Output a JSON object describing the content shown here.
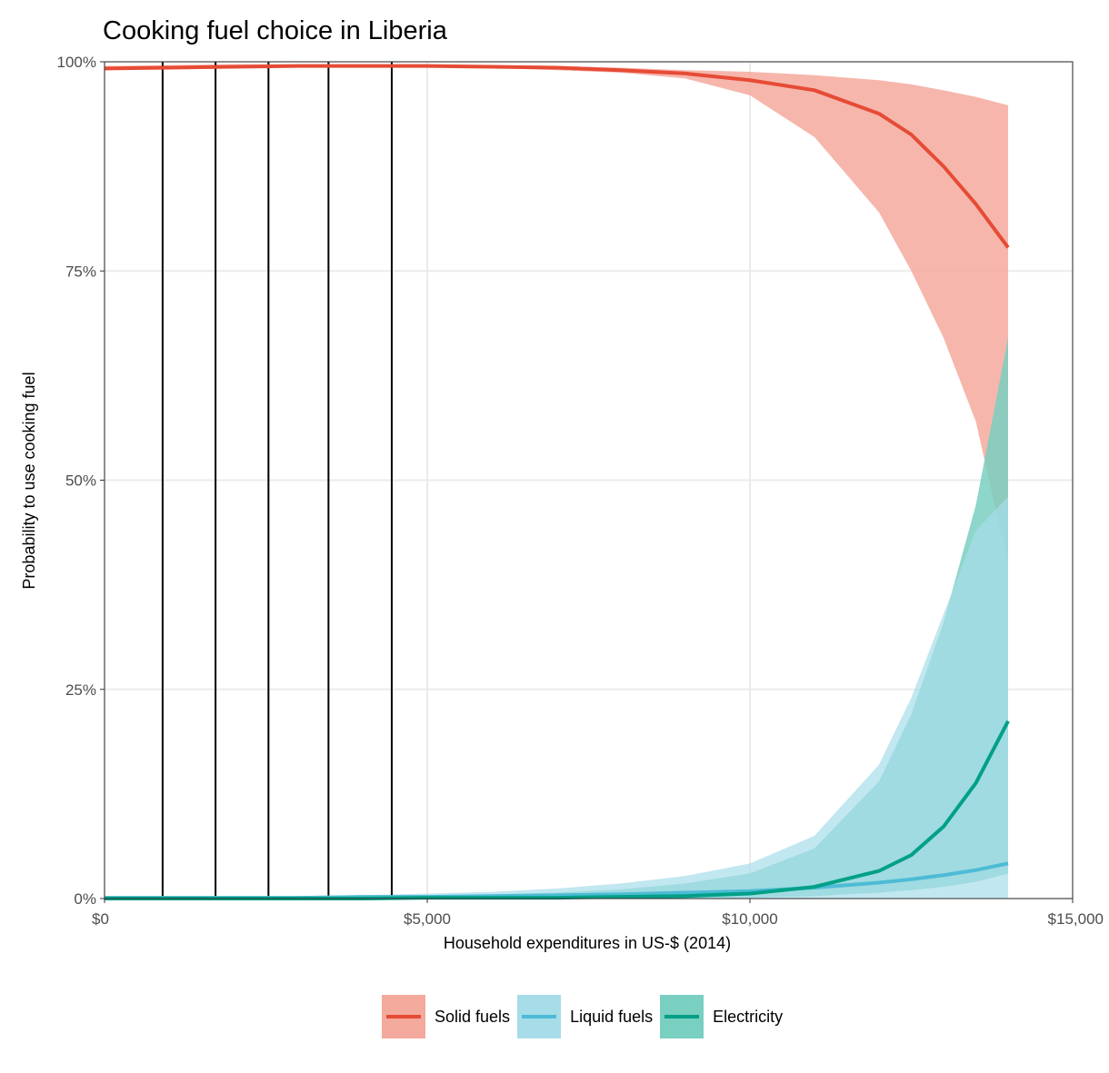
{
  "chart_data": {
    "type": "line",
    "title": "Cooking fuel choice in Liberia",
    "xlabel": "Household expenditures in US-$ (2014)",
    "ylabel": "Probability to use cooking fuel",
    "xlim": [
      0,
      15000
    ],
    "ylim": [
      0,
      100
    ],
    "x_ticks": [
      0,
      5000,
      10000,
      15000
    ],
    "x_tick_labels": [
      "$0",
      "$5,000",
      "$10,000",
      "$15,000"
    ],
    "y_ticks": [
      0,
      25,
      50,
      75,
      100
    ],
    "y_tick_labels": [
      "0%",
      "25%",
      "50%",
      "75%",
      "100%"
    ],
    "grid": true,
    "legend_position": "bottom",
    "vertical_lines": [
      900,
      1720,
      2540,
      3470,
      4450
    ],
    "x": [
      0,
      1000,
      2000,
      3000,
      4000,
      5000,
      6000,
      7000,
      8000,
      9000,
      10000,
      11000,
      12000,
      12500,
      13000,
      13500,
      14000
    ],
    "series": [
      {
        "name": "Solid fuels",
        "color": "#e64b35",
        "ribbon_color": "#f4a99d",
        "values": [
          99.2,
          99.3,
          99.4,
          99.5,
          99.5,
          99.5,
          99.4,
          99.3,
          99.0,
          98.6,
          97.8,
          96.6,
          93.8,
          91.3,
          87.5,
          83.0,
          77.8
        ],
        "lower": [
          99.0,
          99.2,
          99.3,
          99.4,
          99.4,
          99.4,
          99.3,
          99.0,
          98.7,
          98.0,
          96.0,
          91.0,
          82.0,
          75.0,
          67.0,
          57.0,
          40.0
        ],
        "upper": [
          99.5,
          99.6,
          99.7,
          99.7,
          99.7,
          99.7,
          99.6,
          99.5,
          99.3,
          99.0,
          98.8,
          98.4,
          97.8,
          97.3,
          96.6,
          95.8,
          94.8
        ]
      },
      {
        "name": "Liquid fuels",
        "color": "#4dbbd5",
        "ribbon_color": "#a6dde9",
        "values": [
          0.1,
          0.1,
          0.1,
          0.1,
          0.2,
          0.2,
          0.3,
          0.4,
          0.5,
          0.7,
          0.9,
          1.3,
          1.9,
          2.3,
          2.8,
          3.4,
          4.2
        ],
        "lower": [
          0.0,
          0.0,
          0.0,
          0.0,
          0.0,
          0.0,
          0.0,
          0.0,
          0.0,
          0.0,
          0.0,
          0.0,
          0.0,
          0.0,
          0.0,
          0.0,
          0.0
        ],
        "upper": [
          0.2,
          0.2,
          0.3,
          0.3,
          0.4,
          0.6,
          0.8,
          1.2,
          1.8,
          2.7,
          4.2,
          7.5,
          16.0,
          24.0,
          34.0,
          44.0,
          48.0
        ]
      },
      {
        "name": "Electricity",
        "color": "#00a087",
        "ribbon_color": "#79cfc0",
        "values": [
          0.0,
          0.0,
          0.0,
          0.0,
          0.0,
          0.1,
          0.1,
          0.1,
          0.2,
          0.3,
          0.6,
          1.4,
          3.3,
          5.2,
          8.6,
          13.8,
          21.2
        ],
        "lower": [
          0.0,
          0.0,
          0.0,
          0.0,
          0.0,
          0.0,
          0.0,
          0.0,
          0.0,
          0.0,
          0.1,
          0.3,
          0.7,
          1.0,
          1.4,
          2.0,
          3.0
        ],
        "upper": [
          0.1,
          0.1,
          0.1,
          0.1,
          0.2,
          0.3,
          0.5,
          0.7,
          1.1,
          1.8,
          3.0,
          6.0,
          14.0,
          22.0,
          33.0,
          47.0,
          67.0
        ]
      }
    ]
  }
}
